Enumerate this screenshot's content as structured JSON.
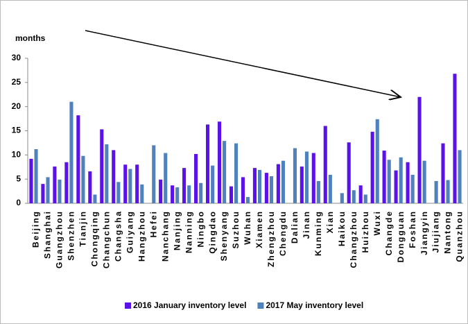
{
  "chart_data": {
    "type": "bar",
    "y_label": "months",
    "categories": [
      "Beijing",
      "Shanghai",
      "Guangzhou",
      "Shenzhen",
      "Tianjin",
      "Chongqing",
      "Changchun",
      "Changsha",
      "Guiyang",
      "Hangzhou",
      "Hefei",
      "Nanchang",
      "Nanjing",
      "Nanning",
      "Ningbo",
      "Qingdao",
      "Shenyang",
      "Suzhou",
      "Wuhan",
      "Xiamen",
      "Zhengzhou",
      "Chengdu",
      "Dalian",
      "Jinan",
      "Kunming",
      "Xian",
      "Haikou",
      "Changzhou",
      "Huizhou",
      "Wuxi",
      "Changde",
      "Dongguan",
      "Foshan",
      "Jiangyin",
      "Jiujiang",
      "Nantong",
      "Quanzhou"
    ],
    "series": [
      {
        "name": "2016 January inventory level",
        "color": "#5b12e8",
        "values": [
          9.2,
          4.0,
          7.6,
          8.5,
          18.2,
          6.6,
          15.3,
          11.0,
          8.0,
          8.0,
          null,
          4.9,
          3.7,
          7.3,
          10.2,
          16.3,
          16.9,
          3.5,
          5.4,
          7.3,
          6.3,
          8.1,
          null,
          7.6,
          10.4,
          16.0,
          null,
          12.6,
          3.7,
          14.8,
          10.9,
          6.8,
          8.5,
          22.0,
          null,
          12.4,
          26.8
        ]
      },
      {
        "name": "2017 May inventory level",
        "color": "#4f81bd",
        "values": [
          11.2,
          5.4,
          4.9,
          21.0,
          9.8,
          1.8,
          12.2,
          4.4,
          7.1,
          3.9,
          12.0,
          10.4,
          3.3,
          3.7,
          4.2,
          7.8,
          12.9,
          12.4,
          1.3,
          6.9,
          5.6,
          8.8,
          11.4,
          10.7,
          4.6,
          5.9,
          2.1,
          2.7,
          1.8,
          17.4,
          9.0,
          9.5,
          5.9,
          8.8,
          4.6,
          4.8,
          11.0
        ]
      }
    ],
    "ylim": [
      0,
      30
    ],
    "yticks": [
      0,
      5,
      10,
      15,
      20,
      25,
      30
    ],
    "grid": false,
    "legend": "bottom"
  }
}
